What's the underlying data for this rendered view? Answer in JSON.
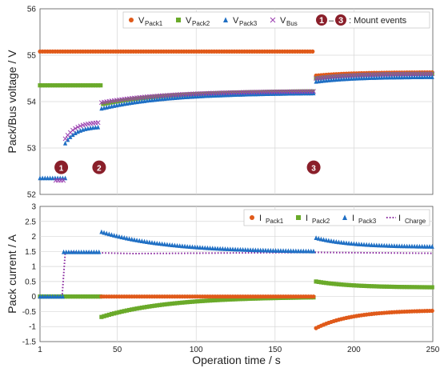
{
  "colors": {
    "pack1": "#e05a1a",
    "pack2": "#6aaa2a",
    "pack3": "#1f6fc4",
    "bus": "#9b3fb0",
    "charge": "#8a2aa0",
    "event_marker": "#8a1f2a"
  },
  "chart_data": [
    {
      "type": "scatter",
      "ylabel": "Pack/Bus voltage / V",
      "xlim": [
        1,
        250
      ],
      "ylim": [
        52,
        56
      ],
      "yticks": [
        52,
        53,
        54,
        55,
        56
      ],
      "grid": true,
      "legend_position": "top-right",
      "legend": [
        {
          "main": "V",
          "sub": "Pack1",
          "series": "pack1",
          "marker": "circle"
        },
        {
          "main": "V",
          "sub": "Pack2",
          "series": "pack2",
          "marker": "square"
        },
        {
          "main": "V",
          "sub": "Pack3",
          "series": "pack3",
          "marker": "triangle"
        },
        {
          "main": "V",
          "sub": "Bus",
          "series": "bus",
          "marker": "x"
        }
      ],
      "legend_note": ": Mount events",
      "legend_event_from": "1",
      "legend_dash": "–",
      "legend_event_to": "3",
      "series": [
        {
          "key": "pack1",
          "segments": [
            {
              "kind": "const",
              "x0": 1,
              "x1": 175,
              "y": 55.08
            },
            {
              "kind": "rise",
              "x0": 176,
              "x1": 250,
              "y0": 54.56,
              "y1": 54.63
            }
          ]
        },
        {
          "key": "pack2",
          "segments": [
            {
              "kind": "const",
              "x0": 1,
              "x1": 40,
              "y": 54.35
            },
            {
              "kind": "rise",
              "x0": 41,
              "x1": 175,
              "y0": 53.95,
              "y1": 54.22
            },
            {
              "kind": "rise",
              "x0": 176,
              "x1": 250,
              "y0": 54.5,
              "y1": 54.6
            }
          ]
        },
        {
          "key": "pack3",
          "segments": [
            {
              "kind": "const",
              "x0": 1,
              "x1": 17,
              "y": 52.35
            },
            {
              "kind": "rise",
              "x0": 17,
              "x1": 39,
              "y0": 53.1,
              "y1": 53.45
            },
            {
              "kind": "rise",
              "x0": 40,
              "x1": 175,
              "y0": 53.85,
              "y1": 54.18
            },
            {
              "kind": "rise",
              "x0": 176,
              "x1": 250,
              "y0": 54.43,
              "y1": 54.53
            }
          ]
        },
        {
          "key": "bus",
          "segments": [
            {
              "kind": "const",
              "x0": 11,
              "x1": 17,
              "y": 52.3
            },
            {
              "kind": "rise",
              "x0": 17,
              "x1": 39,
              "y0": 53.2,
              "y1": 53.55
            },
            {
              "kind": "rise",
              "x0": 40,
              "x1": 175,
              "y0": 53.98,
              "y1": 54.22
            },
            {
              "kind": "rise",
              "x0": 176,
              "x1": 250,
              "y0": 54.5,
              "y1": 54.6
            }
          ]
        }
      ],
      "annotations": [
        {
          "label": "1",
          "x": 16,
          "y": 52.55
        },
        {
          "label": "2",
          "x": 40,
          "y": 52.55
        },
        {
          "label": "3",
          "x": 176,
          "y": 52.55
        }
      ]
    },
    {
      "type": "scatter",
      "xlabel": "Operation time / s",
      "ylabel": "Pack current / A",
      "xlim": [
        1,
        250
      ],
      "ylim": [
        -1.5,
        3
      ],
      "yticks": [
        -1.5,
        -1,
        -0.5,
        0,
        0.5,
        1,
        1.5,
        2,
        2.5,
        3
      ],
      "xticks": [
        1,
        50,
        100,
        150,
        200,
        250
      ],
      "grid": true,
      "legend_position": "top-right",
      "legend": [
        {
          "main": "I",
          "sub": "Pack1",
          "series": "pack1",
          "marker": "circle"
        },
        {
          "main": "I",
          "sub": "Pack2",
          "series": "pack2",
          "marker": "square"
        },
        {
          "main": "I",
          "sub": "Pack3",
          "series": "pack3",
          "marker": "triangle"
        },
        {
          "main": "I",
          "sub": "Charge",
          "series": "charge",
          "marker": "dotted-line"
        }
      ],
      "series": [
        {
          "key": "charge",
          "line": true,
          "points": [
            [
              1,
              0
            ],
            [
              15,
              0
            ],
            [
              17,
              1.48
            ],
            [
              60,
              1.43
            ],
            [
              175,
              1.47
            ],
            [
              176,
              1.47
            ],
            [
              250,
              1.44
            ]
          ]
        },
        {
          "key": "pack2",
          "segments": [
            {
              "kind": "const",
              "x0": 1,
              "x1": 40,
              "y": 0
            },
            {
              "kind": "decay",
              "x0": 40,
              "x1": 175,
              "y0": -0.68,
              "y1": 0.0
            },
            {
              "kind": "decay",
              "x0": 176,
              "x1": 250,
              "y0": 0.5,
              "y1": 0.3
            }
          ]
        },
        {
          "key": "pack1",
          "segments": [
            {
              "kind": "const",
              "x0": 40,
              "x1": 175,
              "y": 0
            },
            {
              "kind": "decay",
              "x0": 176,
              "x1": 250,
              "y0": -1.05,
              "y1": -0.45
            }
          ]
        },
        {
          "key": "pack3",
          "segments": [
            {
              "kind": "const",
              "x0": 1,
              "x1": 16,
              "y": 0
            },
            {
              "kind": "const",
              "x0": 16,
              "x1": 39,
              "y": 1.48
            },
            {
              "kind": "decay",
              "x0": 40,
              "x1": 175,
              "y0": 2.15,
              "y1": 1.48
            },
            {
              "kind": "decay",
              "x0": 176,
              "x1": 250,
              "y0": 1.95,
              "y1": 1.65
            }
          ]
        }
      ]
    }
  ]
}
